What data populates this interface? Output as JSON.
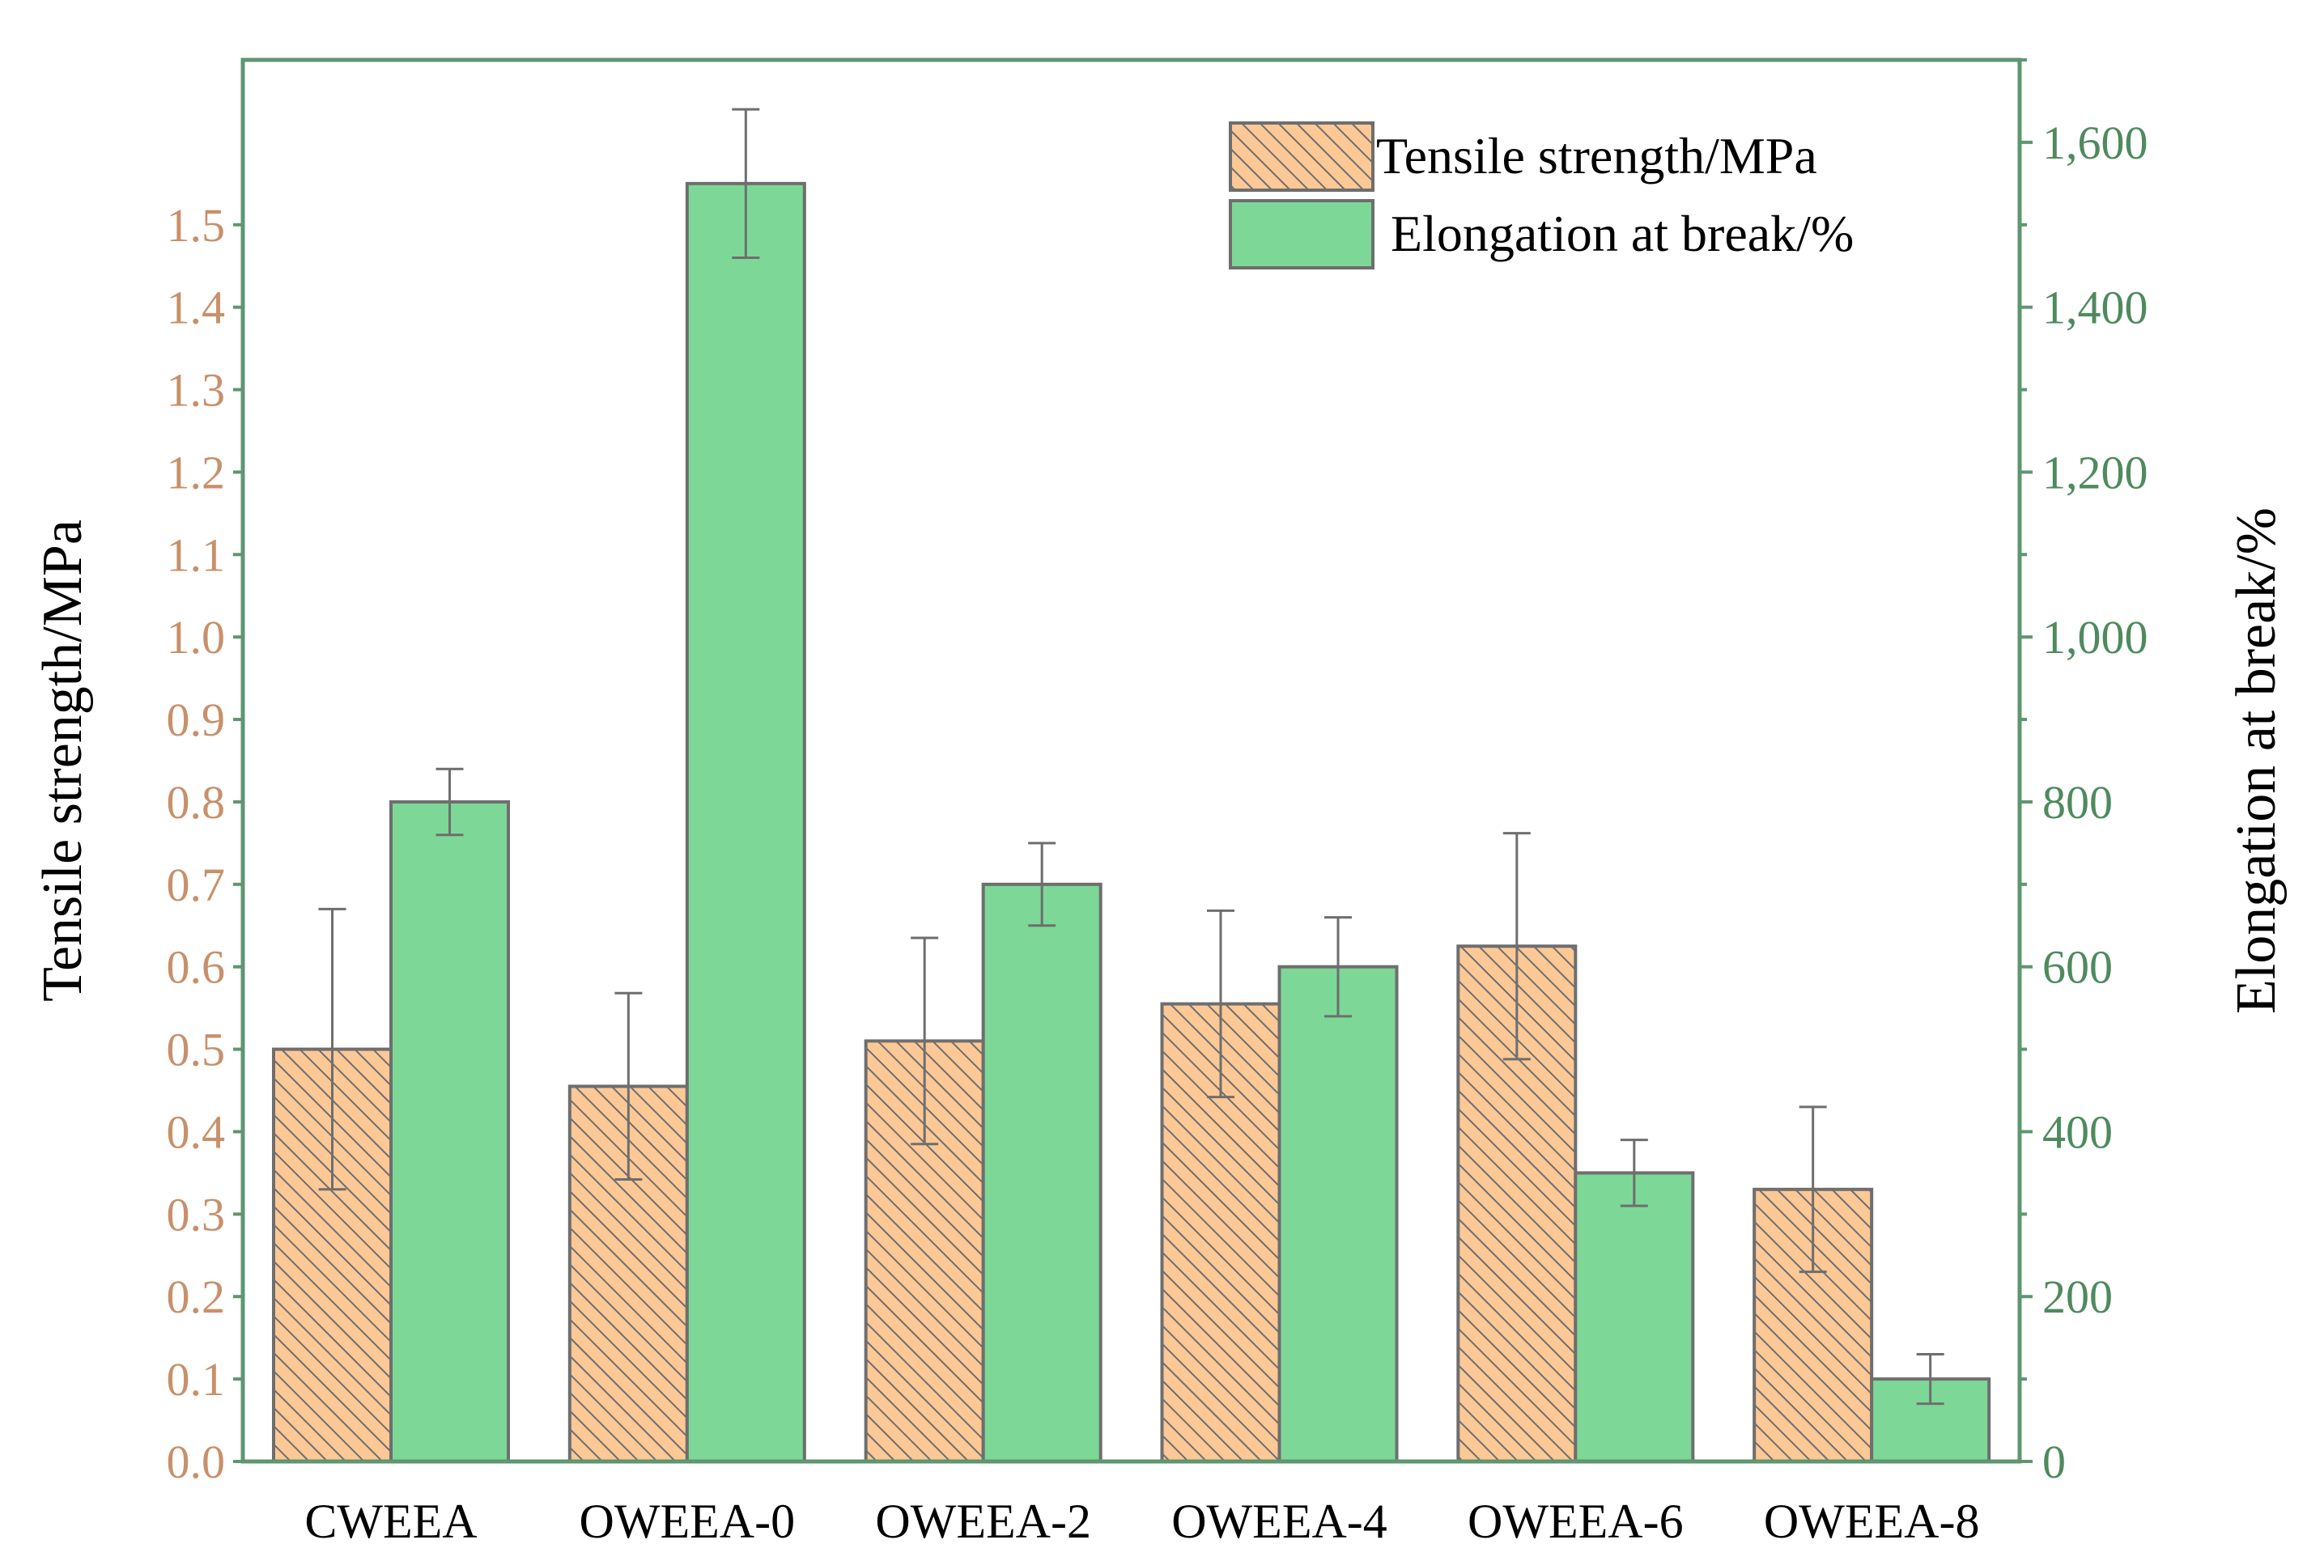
{
  "chart_data": {
    "type": "bar",
    "categories": [
      "CWEEA",
      "OWEEA-0",
      "OWEEA-2",
      "OWEEA-4",
      "OWEEA-6",
      "OWEEA-8"
    ],
    "series": [
      {
        "name": "Tensile strength/MPa",
        "axis": "left",
        "values": [
          0.5,
          0.455,
          0.51,
          0.555,
          0.625,
          0.33
        ],
        "errors": [
          0.17,
          0.113,
          0.125,
          0.113,
          0.137,
          0.1
        ],
        "color": "#FCC896",
        "hatch": "diagonal"
      },
      {
        "name": "Elongation at break/%",
        "axis": "right",
        "values": [
          800,
          1550,
          700,
          600,
          350,
          100
        ],
        "errors": [
          40,
          90,
          50,
          60,
          40,
          30
        ],
        "color": "#7DD897"
      }
    ],
    "ylabel": "Tensile strength/MPa",
    "y2label": "Elongation at break/%",
    "ylim": [
      0,
      1.7
    ],
    "y2lim": [
      0,
      1700
    ],
    "yticks": [
      "0.0",
      "0.1",
      "0.2",
      "0.3",
      "0.4",
      "0.5",
      "0.6",
      "0.7",
      "0.8",
      "0.9",
      "1.0",
      "1.1",
      "1.2",
      "1.3",
      "1.4",
      "1.5"
    ],
    "y2ticks": [
      "0",
      "200",
      "400",
      "600",
      "800",
      "1,000",
      "1,200",
      "1,400",
      "1,600"
    ],
    "legend_position": "top-right",
    "colors": {
      "left_axis": "#C8906A",
      "right_axis": "#4E8A5E",
      "frame": "#5E9670",
      "bar_edge": "#6E6E6E",
      "error_bar": "#6E6E6E"
    }
  }
}
